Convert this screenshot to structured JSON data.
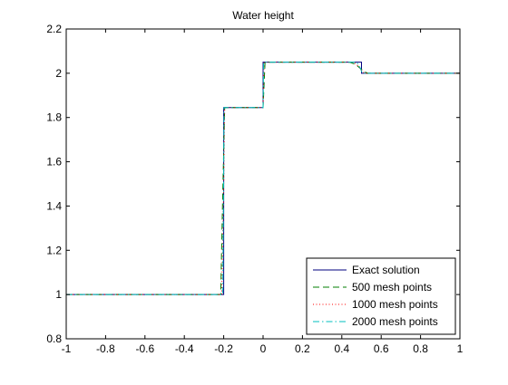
{
  "chart_data": {
    "type": "line",
    "title": "Water height",
    "xlabel": "",
    "ylabel": "",
    "xlim": [
      -1,
      1
    ],
    "ylim": [
      0.8,
      2.2
    ],
    "xticks": [
      -1,
      -0.8,
      -0.6,
      -0.4,
      -0.2,
      0,
      0.2,
      0.4,
      0.6,
      0.8,
      1
    ],
    "yticks": [
      0.8,
      1,
      1.2,
      1.4,
      1.6,
      1.8,
      2,
      2.2
    ],
    "xtick_labels": [
      "-1",
      "-0.8",
      "-0.6",
      "-0.4",
      "-0.2",
      "0",
      "0.2",
      "0.4",
      "0.6",
      "0.8",
      "1"
    ],
    "ytick_labels": [
      "0.8",
      "1",
      "1.2",
      "1.4",
      "1.6",
      "1.8",
      "2",
      "2.2"
    ],
    "grid": false,
    "legend_position": "bottom-right",
    "series": [
      {
        "name": "Exact solution",
        "color": "#00007f",
        "style": "solid",
        "x": [
          -1,
          -0.2,
          -0.2,
          0,
          0,
          0.5,
          0.5,
          1
        ],
        "y": [
          1,
          1,
          1.845,
          1.845,
          2.05,
          2.05,
          2.0,
          2.0
        ]
      },
      {
        "name": "500 mesh points",
        "color": "#007f00",
        "style": "dashed",
        "x": [
          -1,
          -0.215,
          -0.205,
          -0.195,
          0,
          0.01,
          0.44,
          0.47,
          0.49,
          0.51,
          0.53,
          1
        ],
        "y": [
          1,
          1,
          1.45,
          1.845,
          1.845,
          2.05,
          2.05,
          2.04,
          2.025,
          2.01,
          2.0,
          2.0
        ]
      },
      {
        "name": "1000 mesh points",
        "color": "#ff0000",
        "style": "dotted",
        "x": [
          -1,
          -0.21,
          -0.2,
          -0.195,
          0,
          0.005,
          0.46,
          0.48,
          0.5,
          0.515,
          1
        ],
        "y": [
          1,
          1,
          1.5,
          1.845,
          1.845,
          2.05,
          2.05,
          2.035,
          2.015,
          2.0,
          2.0
        ]
      },
      {
        "name": "2000 mesh points",
        "color": "#00bfbf",
        "style": "dashdot",
        "x": [
          -1,
          -0.205,
          -0.2,
          -0.198,
          0,
          0.003,
          0.475,
          0.49,
          0.505,
          1
        ],
        "y": [
          1,
          1,
          1.55,
          1.845,
          1.845,
          2.05,
          2.05,
          2.03,
          2.0,
          2.0
        ]
      }
    ]
  }
}
